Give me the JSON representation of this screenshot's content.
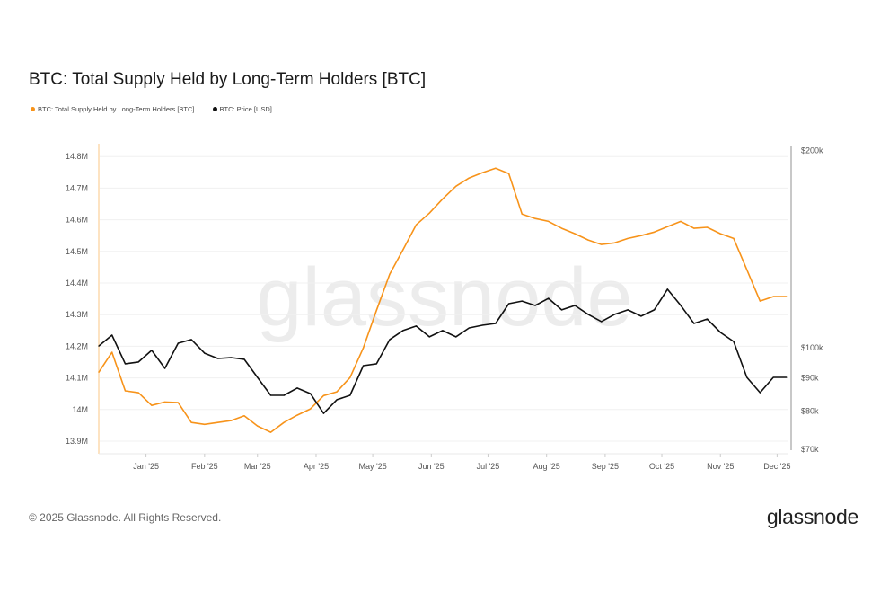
{
  "title": "BTC: Total Supply Held by Long-Term Holders [BTC]",
  "legend": [
    {
      "label": "BTC: Total Supply Held by Long-Term Holders [BTC]",
      "color": "#f7931a"
    },
    {
      "label": "BTC: Price [USD]",
      "color": "#111111"
    }
  ],
  "watermark": "glassnode",
  "footer": {
    "copyright": "© 2025 Glassnode. All Rights Reserved.",
    "logo": "glassnode"
  },
  "chart_data": {
    "type": "line",
    "title": "BTC: Total Supply Held by Long-Term Holders [BTC]",
    "grid": "horizontal",
    "legend_placement": "top-left",
    "x_ticks": [
      "Jan '25",
      "Feb '25",
      "Mar '25",
      "Apr '25",
      "May '25",
      "Jun '25",
      "Jul '25",
      "Aug '25",
      "Sep '25",
      "Oct '25",
      "Nov '25",
      "Dec '25"
    ],
    "x_tick_dates": [
      "2025-01-01",
      "2025-02-01",
      "2025-03-01",
      "2025-04-01",
      "2025-05-01",
      "2025-06-01",
      "2025-07-01",
      "2025-08-01",
      "2025-09-01",
      "2025-10-01",
      "2025-11-01",
      "2025-12-01"
    ],
    "x_range": [
      "2024-12-07",
      "2025-12-07"
    ],
    "left_axis": {
      "range": [
        13.88,
        14.84
      ],
      "ticks": [
        13.9,
        14.0,
        14.1,
        14.2,
        14.3,
        14.4,
        14.5,
        14.6,
        14.7,
        14.8
      ],
      "tick_labels": [
        "13.9M",
        "14M",
        "14.1M",
        "14.2M",
        "14.3M",
        "14.4M",
        "14.5M",
        "14.6M",
        "14.7M",
        "14.8M"
      ]
    },
    "right_axis": {
      "scale": "log",
      "range": [
        70000,
        200000
      ],
      "ticks": [
        70000,
        80000,
        90000,
        100000,
        200000
      ],
      "tick_labels": [
        "$70k",
        "$80k",
        "$90k",
        "$100k",
        "$200k"
      ]
    },
    "x": [
      "2024-12-07",
      "2024-12-14",
      "2024-12-21",
      "2024-12-28",
      "2025-01-04",
      "2025-01-11",
      "2025-01-18",
      "2025-01-25",
      "2025-02-01",
      "2025-02-08",
      "2025-02-15",
      "2025-02-22",
      "2025-03-01",
      "2025-03-08",
      "2025-03-15",
      "2025-03-22",
      "2025-03-29",
      "2025-04-05",
      "2025-04-12",
      "2025-04-19",
      "2025-04-26",
      "2025-05-03",
      "2025-05-10",
      "2025-05-17",
      "2025-05-24",
      "2025-05-31",
      "2025-06-07",
      "2025-06-14",
      "2025-06-21",
      "2025-06-28",
      "2025-07-05",
      "2025-07-12",
      "2025-07-19",
      "2025-07-26",
      "2025-08-02",
      "2025-08-09",
      "2025-08-16",
      "2025-08-23",
      "2025-08-30",
      "2025-09-06",
      "2025-09-13",
      "2025-09-20",
      "2025-09-27",
      "2025-10-04",
      "2025-10-11",
      "2025-10-18",
      "2025-10-25",
      "2025-11-01",
      "2025-11-08",
      "2025-11-15",
      "2025-11-22",
      "2025-11-29",
      "2025-12-06"
    ],
    "series": [
      {
        "name": "BTC: Total Supply Held by Long-Term Holders [BTC]",
        "axis": "left",
        "color": "#f7931a",
        "unit": "M BTC",
        "values": [
          14.118,
          14.181,
          14.059,
          14.053,
          14.013,
          14.024,
          14.022,
          13.959,
          13.953,
          13.959,
          13.965,
          13.98,
          13.948,
          13.928,
          13.959,
          13.982,
          14.002,
          14.044,
          14.056,
          14.101,
          14.195,
          14.314,
          14.428,
          14.505,
          14.584,
          14.621,
          14.666,
          14.706,
          14.732,
          14.749,
          14.763,
          14.746,
          14.618,
          14.604,
          14.595,
          14.573,
          14.556,
          14.536,
          14.522,
          14.527,
          14.541,
          14.55,
          14.561,
          14.578,
          14.595,
          14.573,
          14.576,
          14.556,
          14.541,
          14.442,
          14.343,
          14.357,
          14.357
        ]
      },
      {
        "name": "BTC: Price [USD]",
        "axis": "right",
        "color": "#111111",
        "unit": "USD",
        "values": [
          100600,
          104500,
          94500,
          95100,
          99100,
          93000,
          101600,
          102900,
          98100,
          96300,
          96600,
          96000,
          90100,
          84600,
          84600,
          86800,
          85100,
          79400,
          83300,
          84600,
          93900,
          94500,
          102900,
          106200,
          107900,
          103900,
          106200,
          103900,
          107200,
          108200,
          108900,
          116700,
          117800,
          116000,
          118900,
          114200,
          116000,
          112400,
          109600,
          112400,
          114200,
          111700,
          114200,
          122800,
          116000,
          108900,
          110600,
          105500,
          102200,
          90100,
          85400,
          90100,
          90100
        ]
      }
    ]
  }
}
